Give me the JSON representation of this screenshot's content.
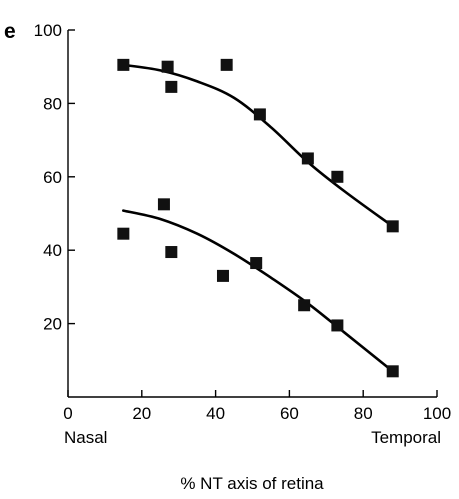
{
  "panel_label": "e",
  "chart_data": {
    "type": "scatter",
    "xlabel": "% NT axis of retina",
    "ylabel": "",
    "xlim": [
      0,
      100
    ],
    "ylim": [
      0,
      100
    ],
    "x_ticks": [
      0,
      20,
      40,
      60,
      80,
      100
    ],
    "y_ticks": [
      20,
      40,
      60,
      80,
      100
    ],
    "x_end_labels": {
      "left": "Nasal",
      "right": "Temporal"
    },
    "grid": false,
    "legend": "none",
    "series": [
      {
        "x": [
          15,
          27,
          28,
          43,
          52,
          65,
          73,
          88
        ],
        "y": [
          90.5,
          90,
          84.5,
          90.5,
          77,
          65,
          60,
          46.5
        ],
        "fit": {
          "x": [
            15,
            25,
            35,
            45,
            55,
            65,
            75,
            88
          ],
          "y": [
            90.5,
            89.0,
            86.0,
            81.5,
            73.5,
            64.0,
            56.0,
            46.5
          ]
        }
      },
      {
        "x": [
          15,
          26,
          28,
          42,
          51,
          64,
          73,
          88
        ],
        "y": [
          44.5,
          52.5,
          39.5,
          33,
          36.5,
          25,
          19.5,
          7
        ],
        "fit": {
          "x": [
            15,
            25,
            35,
            45,
            55,
            65,
            75,
            88
          ],
          "y": [
            50.8,
            48.5,
            44.5,
            39.0,
            32.5,
            25.5,
            17.5,
            7.0
          ]
        }
      }
    ]
  }
}
